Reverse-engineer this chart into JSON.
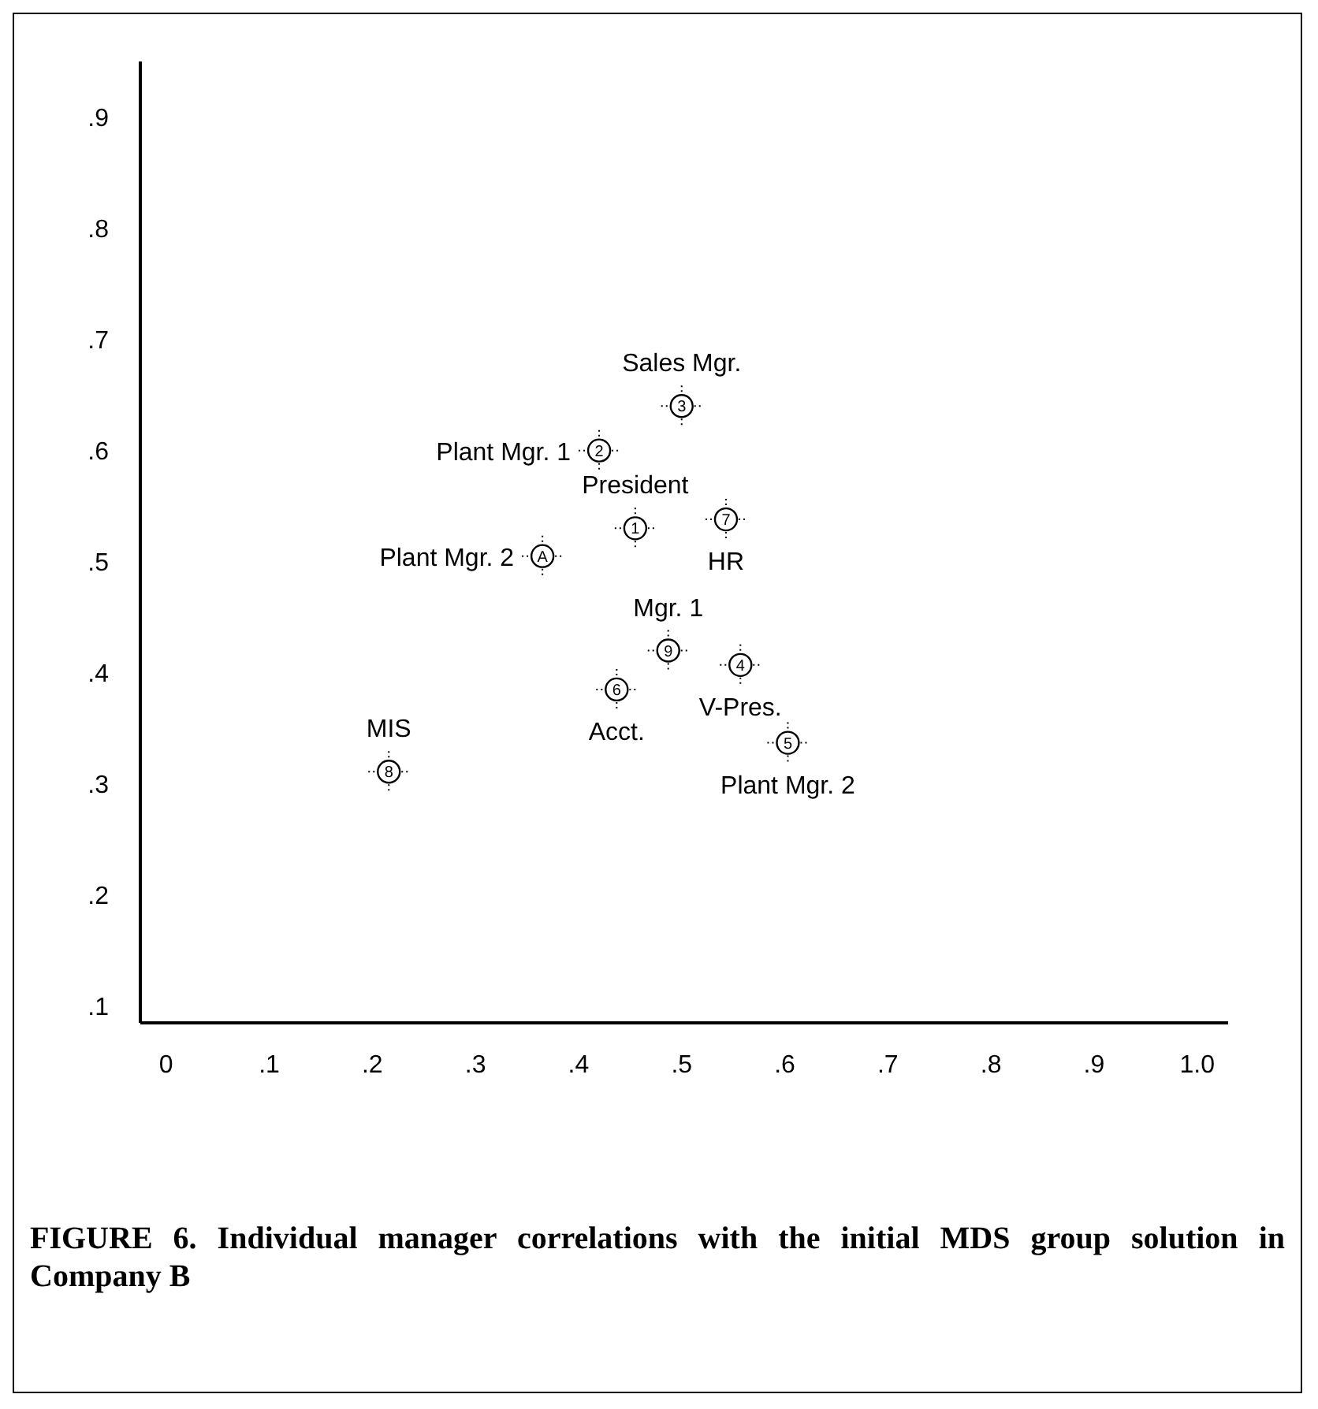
{
  "chart_data": {
    "type": "scatter",
    "title": "FIGURE 6. Individual manager correlations with the initial MDS group solution in Company B",
    "x": [
      0.5,
      0.42,
      0.455,
      0.543,
      0.365,
      0.487,
      0.557,
      0.437,
      0.603,
      0.216
    ],
    "values": [
      0.64,
      0.6,
      0.53,
      0.538,
      0.505,
      0.42,
      0.407,
      0.385,
      0.337,
      0.311
    ],
    "color": "#000000",
    "marker": "circle",
    "annotations": [
      {
        "text": "Sales Mgr.",
        "x": 0.5,
        "y": 0.64
      },
      {
        "text": "Plant Mgr. 1",
        "x": 0.42,
        "y": 0.6
      },
      {
        "text": "President",
        "x": 0.455,
        "y": 0.53
      },
      {
        "text": "HR",
        "x": 0.543,
        "y": 0.538
      },
      {
        "text": "Plant Mgr. 2",
        "x": 0.365,
        "y": 0.505
      },
      {
        "text": "Mgr. 1",
        "x": 0.487,
        "y": 0.42
      },
      {
        "text": "V-Pres.",
        "x": 0.557,
        "y": 0.407
      },
      {
        "text": "Acct.",
        "x": 0.437,
        "y": 0.385
      },
      {
        "text": "Plant Mgr. 2",
        "x": 0.603,
        "y": 0.337
      },
      {
        "text": "MIS",
        "x": 0.216,
        "y": 0.311
      },
      {
        "text": "3",
        "x": 0.5,
        "y": 0.64
      },
      {
        "text": "2",
        "x": 0.42,
        "y": 0.6
      },
      {
        "text": "1",
        "x": 0.455,
        "y": 0.53
      },
      {
        "text": "7",
        "x": 0.543,
        "y": 0.538
      },
      {
        "text": "A",
        "x": 0.365,
        "y": 0.505
      },
      {
        "text": "9",
        "x": 0.487,
        "y": 0.42
      },
      {
        "text": "4",
        "x": 0.557,
        "y": 0.407
      },
      {
        "text": "6",
        "x": 0.437,
        "y": 0.385
      },
      {
        "text": "5",
        "x": 0.603,
        "y": 0.337
      },
      {
        "text": "8",
        "x": 0.216,
        "y": 0.311
      }
    ],
    "xlim": [
      -0.025,
      1.03
    ],
    "xticks": [
      0,
      {
        "value": 0.1,
        "label": ".1"
      },
      {
        "value": 0.2,
        "label": ".2"
      },
      {
        "value": 0.3,
        "label": ".3"
      },
      {
        "value": 0.4,
        "label": ".4"
      },
      {
        "value": 0.5,
        "label": ".5"
      },
      {
        "value": 0.6,
        "label": ".6"
      },
      {
        "value": 0.7,
        "label": ".7"
      },
      {
        "value": 0.8,
        "label": ".8"
      },
      {
        "value": 0.9,
        "label": ".9"
      },
      {
        "value": 1.0,
        "label": "1.0"
      }
    ],
    "ylim": [
      0.085,
      0.95
    ],
    "yticks": [
      {
        "value": 0.1,
        "label": ".1"
      },
      {
        "value": 0.2,
        "label": ".2"
      },
      {
        "value": 0.3,
        "label": ".3"
      },
      {
        "value": 0.4,
        "label": ".4"
      },
      {
        "value": 0.5,
        "label": ".5"
      },
      {
        "value": 0.6,
        "label": ".6"
      },
      {
        "value": 0.7,
        "label": ".7"
      },
      {
        "value": 0.8,
        "label": ".8"
      },
      {
        "value": 0.9,
        "label": ".9"
      }
    ],
    "grid": false,
    "legend": false
  }
}
